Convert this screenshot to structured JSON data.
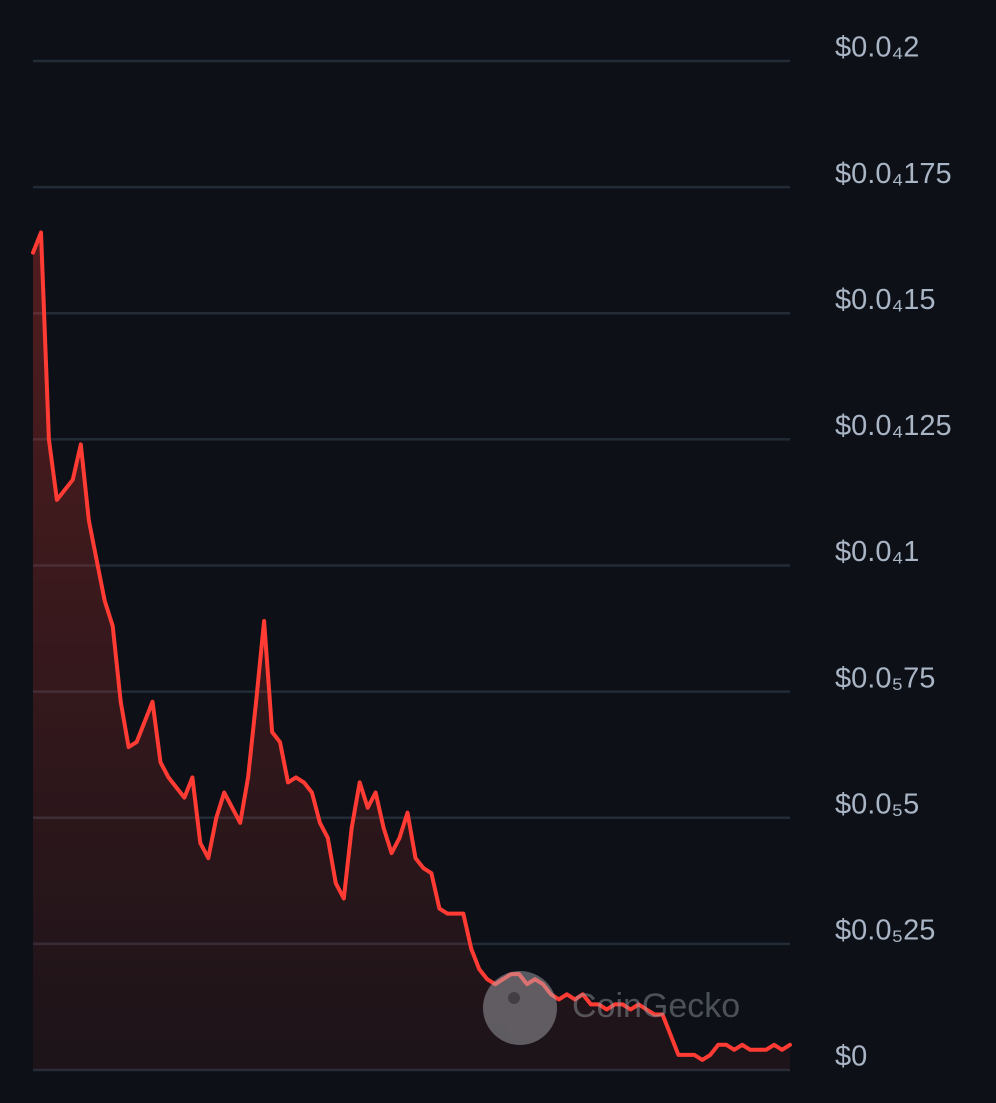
{
  "chart_data": {
    "type": "area",
    "values": [
      1.62e-05,
      1.66e-05,
      1.25e-05,
      1.13e-05,
      1.15e-05,
      1.17e-05,
      1.24e-05,
      1.09e-05,
      1.01e-05,
      9.3e-06,
      8.8e-06,
      7.3e-06,
      6.4e-06,
      6.5e-06,
      6.9e-06,
      7.3e-06,
      6.1e-06,
      5.8e-06,
      5.6e-06,
      5.4e-06,
      5.8e-06,
      4.5e-06,
      4.2e-06,
      5e-06,
      5.5e-06,
      5.2e-06,
      4.9e-06,
      5.8e-06,
      7.3e-06,
      8.9e-06,
      6.7e-06,
      6.5e-06,
      5.7e-06,
      5.8e-06,
      5.7e-06,
      5.5e-06,
      4.9e-06,
      4.6e-06,
      3.7e-06,
      3.4e-06,
      4.8e-06,
      5.7e-06,
      5.2e-06,
      5.5e-06,
      4.8e-06,
      4.3e-06,
      4.6e-06,
      5.1e-06,
      4.2e-06,
      4e-06,
      3.9e-06,
      3.2e-06,
      3.1e-06,
      3.1e-06,
      3.1e-06,
      2.4e-06,
      2e-06,
      1.8e-06,
      1.7e-06,
      1.8e-06,
      1.9e-06,
      1.9e-06,
      1.7e-06,
      1.8e-06,
      1.7e-06,
      1.5e-06,
      1.4e-06,
      1.5e-06,
      1.4e-06,
      1.5e-06,
      1.3e-06,
      1.3e-06,
      1.2e-06,
      1.3e-06,
      1.3e-06,
      1.2e-06,
      1.3e-06,
      1.2e-06,
      1.1e-06,
      1.1e-06,
      7e-07,
      3e-07,
      3e-07,
      3e-07,
      2e-07,
      3e-07,
      5e-07,
      5e-07,
      4e-07,
      5e-07,
      4e-07,
      4e-07,
      4e-07,
      5e-07,
      4e-07,
      5e-07
    ],
    "color": "#ff3b33",
    "ylim": [
      0,
      2e-05
    ],
    "yticks": [
      {
        "value": 0,
        "label": "$0"
      },
      {
        "value": 2.5e-06,
        "label": "$0.0₅25"
      },
      {
        "value": 5e-06,
        "label": "$0.0₅5"
      },
      {
        "value": 7.5e-06,
        "label": "$0.0₅75"
      },
      {
        "value": 1e-05,
        "label": "$0.0₄1"
      },
      {
        "value": 1.25e-05,
        "label": "$0.0₄125"
      },
      {
        "value": 1.5e-05,
        "label": "$0.0₄15"
      },
      {
        "value": 1.75e-05,
        "label": "$0.0₄175"
      },
      {
        "value": 2e-05,
        "label": "$0.0₄2"
      }
    ],
    "grid": true,
    "watermark": "CoinGecko"
  }
}
